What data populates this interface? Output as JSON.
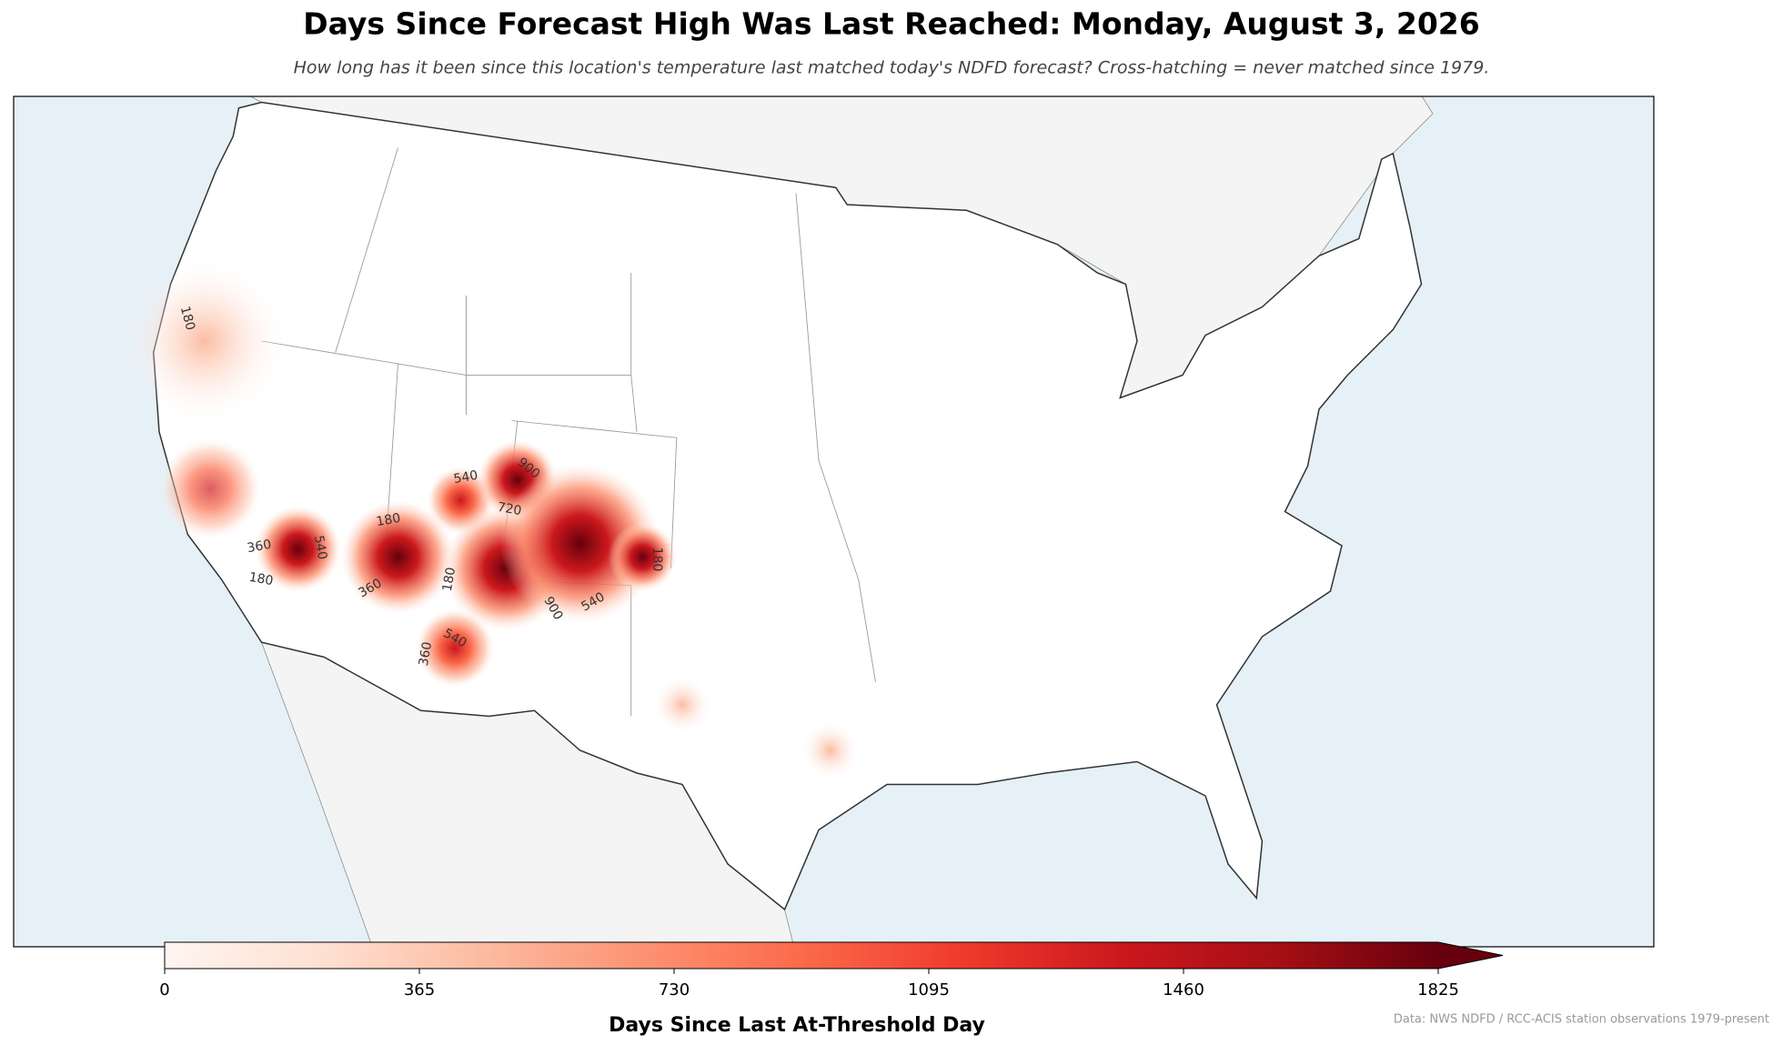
{
  "chart_data": {
    "type": "map",
    "title": "Days Since Forecast High Was Last Reached: Monday, August 3, 2026",
    "subtitle": "How long has it been since this location's temperature last matched today's NDFD forecast? Cross-hatching = never matched since 1979.",
    "colorbar": {
      "label": "Days Since Last At-Threshold Day",
      "lim": [
        0,
        1825
      ],
      "ticks": [
        0,
        365,
        730,
        1095,
        1460,
        1825
      ],
      "extend": "max",
      "colors": [
        "#fff5f0",
        "#fee0d2",
        "#fcbba1",
        "#fc9272",
        "#fb6a4a",
        "#ef3b2c",
        "#cb181d",
        "#a50f15",
        "#67000d"
      ]
    },
    "contour_labels": [
      "180",
      "360",
      "180",
      "540",
      "180",
      "360",
      "540",
      "900",
      "720",
      "180",
      "900",
      "540",
      "360",
      "540",
      "180"
    ],
    "source": "Data: NWS NDFD / RCC-ACIS station observations 1979-present"
  }
}
